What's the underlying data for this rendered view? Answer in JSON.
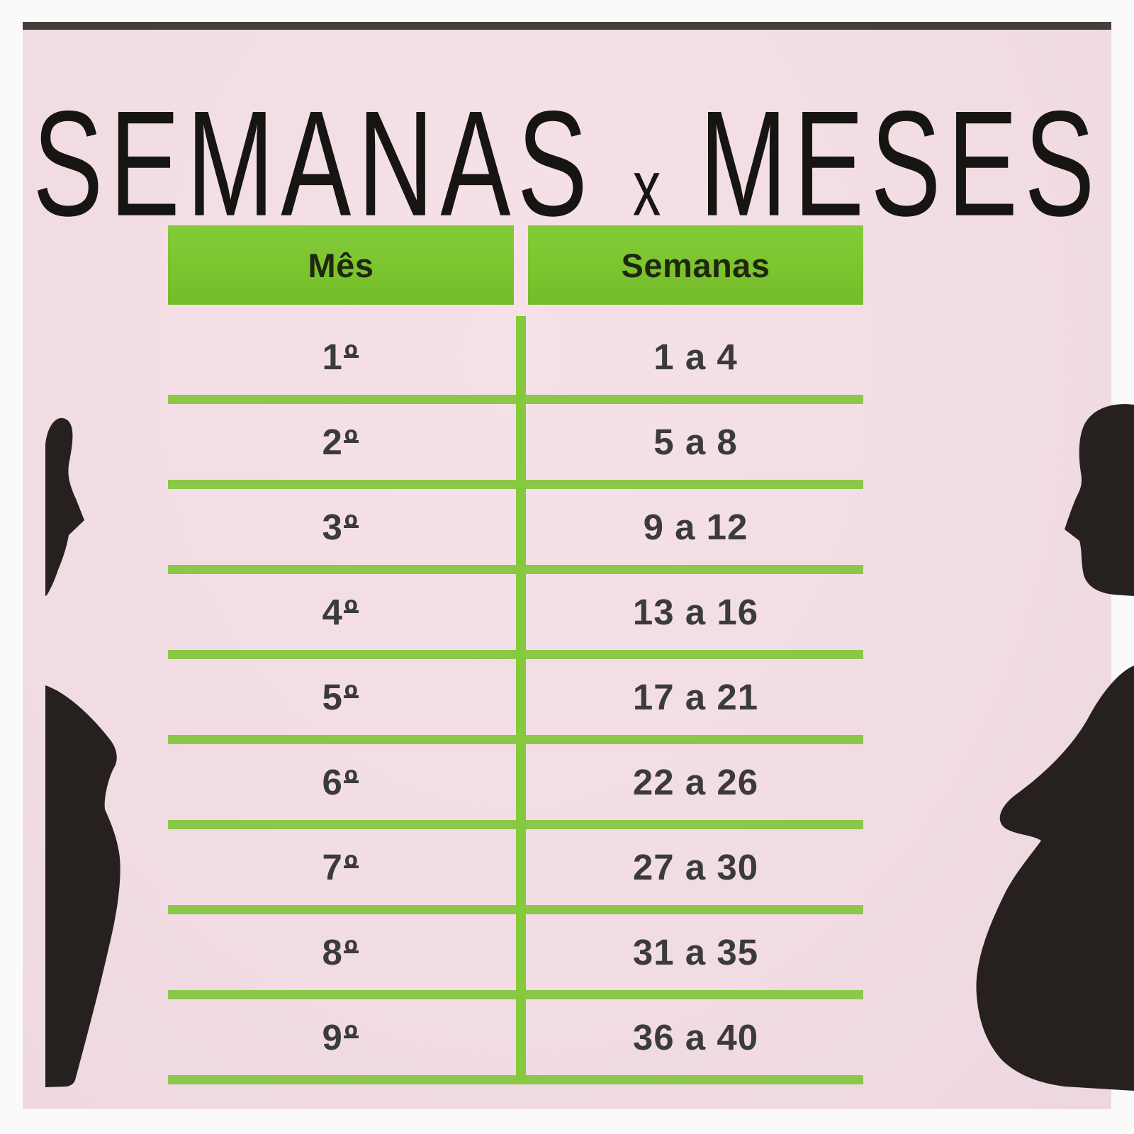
{
  "title": {
    "left": "SEMANAS",
    "middle": "x",
    "right": "MESES"
  },
  "table": {
    "headers": [
      "Mês",
      "Semanas"
    ],
    "rows": [
      {
        "month": "1º",
        "weeks": "1 a 4"
      },
      {
        "month": "2º",
        "weeks": "5 a 8"
      },
      {
        "month": "3º",
        "weeks": "9 a 12"
      },
      {
        "month": "4º",
        "weeks": "13 a 16"
      },
      {
        "month": "5º",
        "weeks": "17 a 21"
      },
      {
        "month": "6º",
        "weeks": "22 a 26"
      },
      {
        "month": "7º",
        "weeks": "27 a 30"
      },
      {
        "month": "8º",
        "weeks": "31 a 35"
      },
      {
        "month": "9º",
        "weeks": "36 a 40"
      }
    ]
  },
  "icons": {
    "left_silhouette": "pregnant-woman-silhouette-facing-right",
    "right_silhouette": "pregnant-woman-silhouette-facing-left"
  },
  "colors": {
    "pink": "#f2dce4",
    "green_header": "#7cc42f",
    "green_line": "#8bc748",
    "green_line_v": "#85c93c",
    "silhouette": "#26211f",
    "top_bar": "#43403a",
    "text_dark": "#3b3b3b",
    "title_black": "#171512"
  },
  "chart_data": {
    "type": "table",
    "title": "SEMANAS x MESES",
    "columns": [
      "Mês",
      "Semanas"
    ],
    "rows": [
      [
        "1º",
        "1 a 4"
      ],
      [
        "2º",
        "5 a 8"
      ],
      [
        "3º",
        "9 a 12"
      ],
      [
        "4º",
        "13 a 16"
      ],
      [
        "5º",
        "17 a 21"
      ],
      [
        "6º",
        "22 a 26"
      ],
      [
        "7º",
        "27 a 30"
      ],
      [
        "8º",
        "31 a 35"
      ],
      [
        "9º",
        "36 a 40"
      ]
    ]
  }
}
